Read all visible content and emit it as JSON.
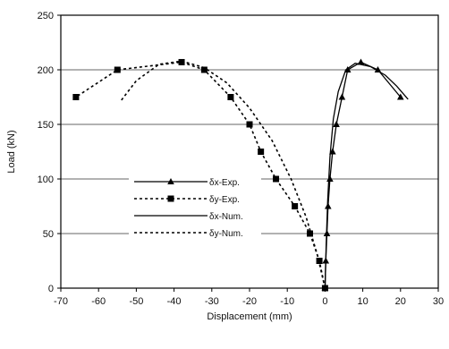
{
  "chart_data": {
    "type": "line",
    "xlabel": "Displacement (mm)",
    "ylabel": "Load (kN)",
    "xlim": [
      -70,
      30
    ],
    "ylim": [
      0,
      250
    ],
    "x_ticks": [
      "-70",
      "-60",
      "-50",
      "-40",
      "-30",
      "-20",
      "-10",
      "0",
      "10",
      "20",
      "30"
    ],
    "y_ticks": [
      "0",
      "50",
      "100",
      "150",
      "200",
      "250"
    ],
    "grid": "horizontal",
    "legend_position": "lower-left",
    "series": [
      {
        "name": "δx-Exp.",
        "line": "solid",
        "marker": "triangle",
        "points": [
          [
            0,
            0
          ],
          [
            0.2,
            25
          ],
          [
            0.5,
            50
          ],
          [
            0.8,
            75
          ],
          [
            1.3,
            100
          ],
          [
            2,
            125
          ],
          [
            3,
            150
          ],
          [
            4.5,
            175
          ],
          [
            6,
            200
          ],
          [
            9.5,
            207
          ],
          [
            14,
            200
          ],
          [
            20,
            175
          ]
        ]
      },
      {
        "name": "δy-Exp.",
        "line": "dotted",
        "marker": "square",
        "points": [
          [
            0,
            0
          ],
          [
            -1.5,
            25
          ],
          [
            -4,
            50
          ],
          [
            -8,
            75
          ],
          [
            -13,
            100
          ],
          [
            -17,
            125
          ],
          [
            -20,
            150
          ],
          [
            -25,
            175
          ],
          [
            -32,
            200
          ],
          [
            -38,
            207
          ],
          [
            -55,
            200
          ],
          [
            -66,
            175
          ]
        ]
      },
      {
        "name": "δx-Num.",
        "line": "solid",
        "marker": "none",
        "points": [
          [
            0,
            0
          ],
          [
            0.3,
            40
          ],
          [
            0.7,
            80
          ],
          [
            1.3,
            120
          ],
          [
            2.2,
            155
          ],
          [
            3.5,
            180
          ],
          [
            5.5,
            200
          ],
          [
            8,
            206
          ],
          [
            12,
            203
          ],
          [
            16,
            195
          ],
          [
            19,
            185
          ],
          [
            22,
            173
          ]
        ]
      },
      {
        "name": "δy-Num.",
        "line": "dotted",
        "marker": "none",
        "points": [
          [
            0,
            0
          ],
          [
            -2,
            30
          ],
          [
            -5,
            65
          ],
          [
            -9,
            100
          ],
          [
            -14,
            135
          ],
          [
            -20,
            165
          ],
          [
            -26,
            188
          ],
          [
            -32,
            202
          ],
          [
            -38,
            208
          ],
          [
            -44,
            205
          ],
          [
            -50,
            190
          ],
          [
            -54,
            172
          ]
        ]
      }
    ]
  }
}
